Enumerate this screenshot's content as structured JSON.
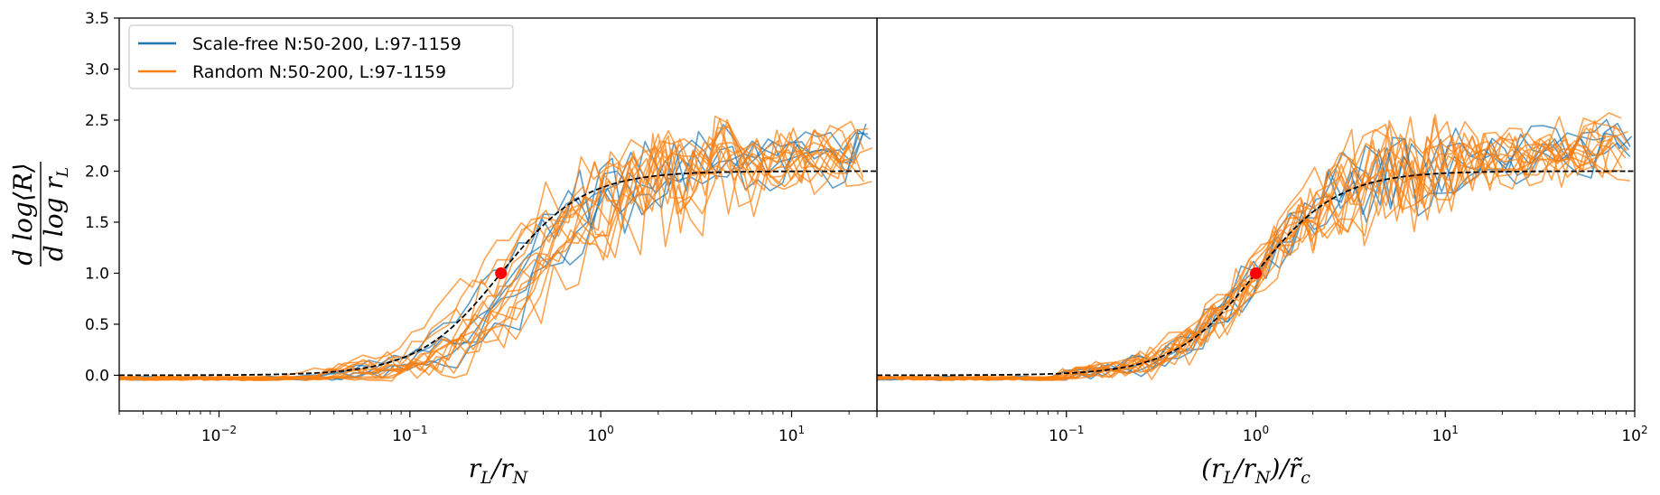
{
  "chart_data": [
    {
      "type": "line",
      "panel": "left",
      "xscale": "log",
      "xlim": [
        0.003,
        28
      ],
      "ylim": [
        -0.35,
        3.5
      ],
      "yticks": [
        "0.0",
        "0.5",
        "1.0",
        "1.5",
        "2.0",
        "2.5",
        "3.0",
        "3.5"
      ],
      "xticks": [
        {
          "value": 0.01,
          "base": "10",
          "exp": "−2"
        },
        {
          "value": 0.1,
          "base": "10",
          "exp": "−1"
        },
        {
          "value": 1,
          "base": "10",
          "exp": "0"
        },
        {
          "value": 10,
          "base": "10",
          "exp": "1"
        }
      ],
      "xlabel": "r_L / r_N",
      "ylabel": "d log⟨R⟩ / d log r_L",
      "legend": {
        "placement": "top-left",
        "entries": [
          {
            "label": "Scale-free N:50-200, L:97-1159",
            "color": "#1f77b4"
          },
          {
            "label": "Random N:50-200, L:97-1159",
            "color": "#ff7f0e"
          }
        ]
      },
      "reference_curve": {
        "style": "dashed",
        "color": "#000000",
        "shape": "2 / (1 + (x_c / x)^2)",
        "x_c": 0.3
      },
      "marker": {
        "x": 0.3,
        "y": 1.0,
        "color": "#ff0000"
      },
      "series": [
        {
          "group": "Scale-free",
          "xc": 0.28,
          "tail": 2.42,
          "jitter": 0.06
        },
        {
          "group": "Scale-free",
          "xc": 0.37,
          "tail": 2.3,
          "jitter": 0.08
        },
        {
          "group": "Scale-free",
          "xc": 0.46,
          "tail": 2.25,
          "jitter": 0.1
        },
        {
          "group": "Scale-free",
          "xc": 0.55,
          "tail": 2.2,
          "jitter": 0.12
        },
        {
          "group": "Scale-free",
          "xc": 0.33,
          "tail": 2.35,
          "jitter": 0.09
        },
        {
          "group": "Random",
          "xc": 0.22,
          "tail": 2.18,
          "jitter": 0.07
        },
        {
          "group": "Random",
          "xc": 0.26,
          "tail": 2.2,
          "jitter": 0.08
        },
        {
          "group": "Random",
          "xc": 0.3,
          "tail": 2.25,
          "jitter": 0.1
        },
        {
          "group": "Random",
          "xc": 0.34,
          "tail": 2.3,
          "jitter": 0.09
        },
        {
          "group": "Random",
          "xc": 0.38,
          "tail": 2.15,
          "jitter": 0.11
        },
        {
          "group": "Random",
          "xc": 0.42,
          "tail": 2.28,
          "jitter": 0.12
        },
        {
          "group": "Random",
          "xc": 0.46,
          "tail": 2.22,
          "jitter": 0.1
        },
        {
          "group": "Random",
          "xc": 0.5,
          "tail": 2.35,
          "jitter": 0.13
        },
        {
          "group": "Random",
          "xc": 0.54,
          "tail": 2.2,
          "jitter": 0.14
        },
        {
          "group": "Random",
          "xc": 0.58,
          "tail": 2.32,
          "jitter": 0.12
        },
        {
          "group": "Random",
          "xc": 0.62,
          "tail": 2.25,
          "jitter": 0.15
        },
        {
          "group": "Random",
          "xc": 0.36,
          "tail": 2.38,
          "jitter": 0.1
        },
        {
          "group": "Random",
          "xc": 0.44,
          "tail": 2.12,
          "jitter": 0.09
        }
      ]
    },
    {
      "type": "line",
      "panel": "right",
      "xscale": "log",
      "xlim": [
        0.01,
        100
      ],
      "ylim": [
        -0.35,
        3.5
      ],
      "xticks": [
        {
          "value": 0.1,
          "base": "10",
          "exp": "−1"
        },
        {
          "value": 1,
          "base": "10",
          "exp": "0"
        },
        {
          "value": 10,
          "base": "10",
          "exp": "1"
        },
        {
          "value": 100,
          "base": "10",
          "exp": "2"
        }
      ],
      "xlabel": "(r_L / r_N) / r̃_c",
      "reference_curve": {
        "style": "dashed",
        "color": "#000000",
        "shape": "2 / (1 + (x_c / x)^2)",
        "x_c": 1.0
      },
      "marker": {
        "x": 1.0,
        "y": 1.0,
        "color": "#ff0000"
      },
      "series": [
        {
          "group": "Scale-free",
          "xc": 0.95,
          "tail": 2.25,
          "jitter": 0.07
        },
        {
          "group": "Scale-free",
          "xc": 1.0,
          "tail": 2.3,
          "jitter": 0.09
        },
        {
          "group": "Scale-free",
          "xc": 1.05,
          "tail": 2.22,
          "jitter": 0.1
        },
        {
          "group": "Scale-free",
          "xc": 0.9,
          "tail": 2.35,
          "jitter": 0.08
        },
        {
          "group": "Scale-free",
          "xc": 1.1,
          "tail": 2.4,
          "jitter": 0.11
        },
        {
          "group": "Random",
          "xc": 0.92,
          "tail": 2.18,
          "jitter": 0.07
        },
        {
          "group": "Random",
          "xc": 0.96,
          "tail": 2.2,
          "jitter": 0.08
        },
        {
          "group": "Random",
          "xc": 1.0,
          "tail": 2.25,
          "jitter": 0.1
        },
        {
          "group": "Random",
          "xc": 1.04,
          "tail": 2.3,
          "jitter": 0.09
        },
        {
          "group": "Random",
          "xc": 1.08,
          "tail": 2.15,
          "jitter": 0.11
        },
        {
          "group": "Random",
          "xc": 0.94,
          "tail": 2.28,
          "jitter": 0.12
        },
        {
          "group": "Random",
          "xc": 0.98,
          "tail": 2.22,
          "jitter": 0.1
        },
        {
          "group": "Random",
          "xc": 1.02,
          "tail": 2.35,
          "jitter": 0.13
        },
        {
          "group": "Random",
          "xc": 1.06,
          "tail": 2.2,
          "jitter": 0.14
        },
        {
          "group": "Random",
          "xc": 0.9,
          "tail": 2.32,
          "jitter": 0.12
        },
        {
          "group": "Random",
          "xc": 1.12,
          "tail": 2.25,
          "jitter": 0.15
        },
        {
          "group": "Random",
          "xc": 0.97,
          "tail": 2.38,
          "jitter": 0.1
        },
        {
          "group": "Random",
          "xc": 1.03,
          "tail": 2.12,
          "jitter": 0.09
        }
      ]
    }
  ]
}
